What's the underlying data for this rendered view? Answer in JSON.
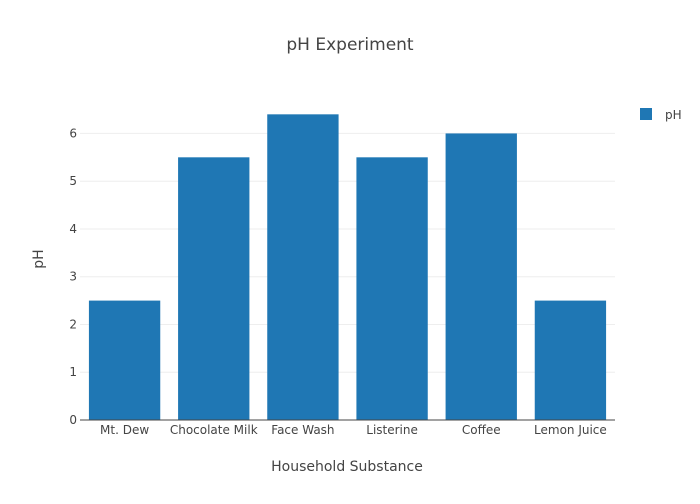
{
  "chart_data": {
    "type": "bar",
    "title": "pH Experiment",
    "xlabel": "Household Substance",
    "ylabel": "pH",
    "categories": [
      "Mt. Dew",
      "Chocolate Milk",
      "Face Wash",
      "Listerine",
      "Coffee",
      "Lemon Juice"
    ],
    "series": [
      {
        "name": "pH",
        "values": [
          2.5,
          5.5,
          6.4,
          5.5,
          6.0,
          2.5
        ],
        "color": "#1f77b4"
      }
    ],
    "ylim": [
      0,
      6.7
    ],
    "yticks": [
      0,
      1,
      2,
      3,
      4,
      5,
      6
    ],
    "grid": true,
    "legend": "top-right"
  }
}
